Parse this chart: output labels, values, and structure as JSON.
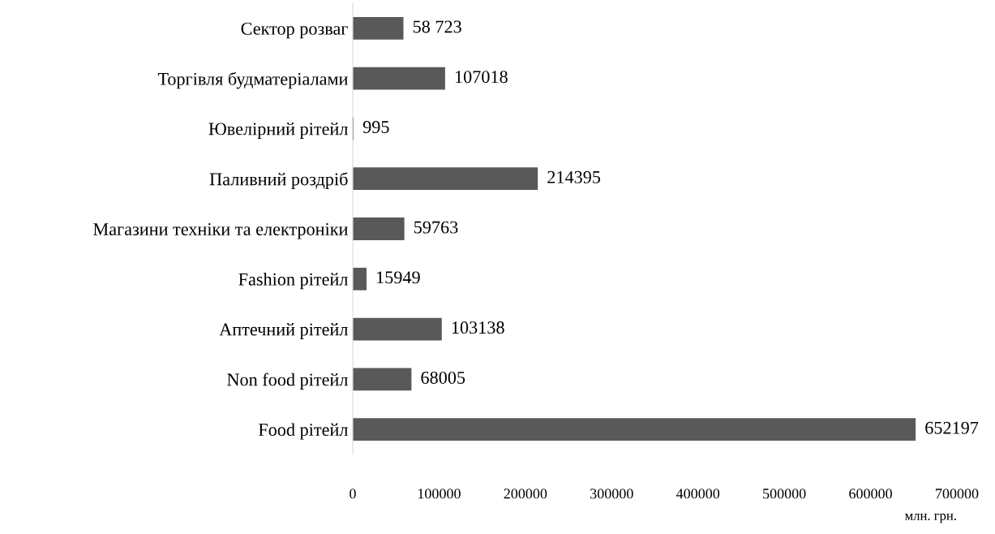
{
  "chart_data": {
    "type": "bar",
    "orientation": "horizontal",
    "categories": [
      "Сектор розваг",
      "Торгівля будматеріалами",
      "Ювелірний рітейл",
      "Паливний роздріб",
      "Магазини техніки та електроніки",
      "Fashion рітейл",
      "Аптечний рітейл",
      "Non food рітейл",
      "Food рітейл"
    ],
    "values": [
      58723,
      107018,
      995,
      214395,
      59763,
      15949,
      103138,
      68005,
      652197
    ],
    "value_labels": [
      "58 723",
      "107018",
      "995",
      "214395",
      "59763",
      "15949",
      "103138",
      "68005",
      "652197"
    ],
    "color": "#595959",
    "xlim": [
      0,
      700000
    ],
    "xticks": [
      0,
      100000,
      200000,
      300000,
      400000,
      500000,
      600000,
      700000
    ],
    "xlabel": "млн. грн.",
    "grid": false,
    "legend": false
  }
}
